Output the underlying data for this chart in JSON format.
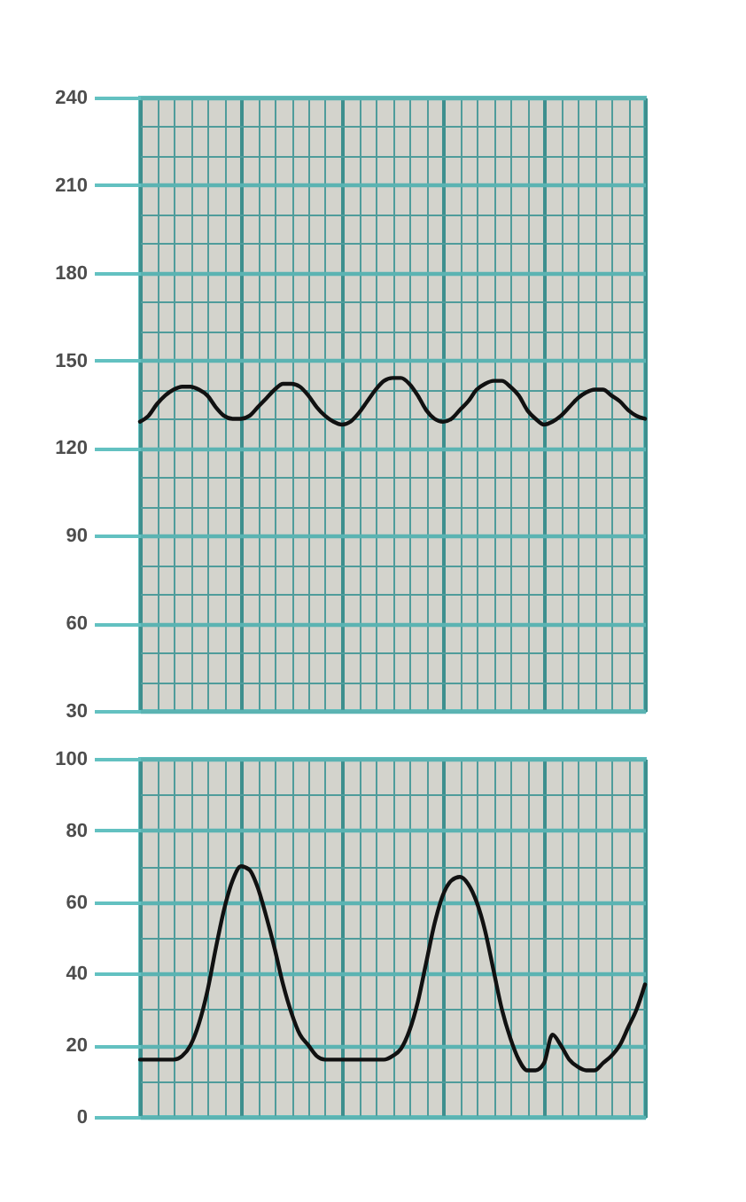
{
  "chart_data": [
    {
      "type": "line",
      "categories": [
        null,
        null,
        null,
        null,
        null,
        null,
        null,
        null,
        null,
        null,
        null,
        null,
        null,
        null,
        null,
        null,
        null,
        null,
        null,
        null,
        null,
        null,
        null,
        null,
        null,
        null,
        null,
        null,
        null,
        null,
        null,
        null,
        null,
        null,
        null,
        null,
        null,
        null,
        null,
        null,
        null,
        null,
        null,
        null,
        null,
        null,
        null,
        null,
        null,
        null,
        null,
        null,
        null,
        null,
        null,
        null,
        null,
        null,
        null,
        null,
        null
      ],
      "series": [
        {
          "color": "#111111",
          "values": [
            129,
            131,
            135,
            138,
            140,
            141,
            141,
            140,
            138,
            134,
            131,
            130,
            130,
            131,
            134,
            137,
            140,
            142,
            142,
            141,
            138,
            134,
            131,
            129,
            128,
            129,
            132,
            136,
            140,
            143,
            144,
            144,
            142,
            138,
            133,
            130,
            129,
            130,
            133,
            136,
            140,
            142,
            143,
            143,
            141,
            138,
            133,
            130,
            128,
            129,
            131,
            134,
            137,
            139,
            140,
            140,
            138,
            136,
            133,
            131,
            130
          ]
        }
      ],
      "ylim": [
        30,
        240
      ],
      "yticks": [
        30,
        {
          "value": 40,
          "label": null
        },
        {
          "value": 50,
          "label": null
        },
        60,
        {
          "value": 70,
          "label": null
        },
        {
          "value": 80,
          "label": null
        },
        90,
        {
          "value": 100,
          "label": null
        },
        {
          "value": 110,
          "label": null
        },
        120,
        {
          "value": 130,
          "label": null
        },
        {
          "value": 140,
          "label": null
        },
        150,
        {
          "value": 160,
          "label": null
        },
        {
          "value": 170,
          "label": null
        },
        180,
        {
          "value": 190,
          "label": null
        },
        {
          "value": 200,
          "label": null
        },
        210,
        {
          "value": 220,
          "label": null
        },
        {
          "value": 230,
          "label": null
        },
        240
      ],
      "grid": true,
      "tick_labels": "y"
    },
    {
      "type": "line",
      "categories": [
        null,
        null,
        null,
        null,
        null,
        null,
        null,
        null,
        null,
        null,
        null,
        null,
        null,
        null,
        null,
        null,
        null,
        null,
        null,
        null,
        null,
        null,
        null,
        null,
        null,
        null,
        null,
        null,
        null,
        null,
        null,
        null,
        null,
        null,
        null,
        null,
        null,
        null,
        null,
        null,
        null,
        null,
        null,
        null,
        null,
        null,
        null,
        null,
        null,
        null,
        null,
        null,
        null,
        null,
        null,
        null,
        null,
        null,
        null,
        null,
        null
      ],
      "series": [
        {
          "color": "#111111",
          "values": [
            16,
            16,
            16,
            16,
            16,
            17,
            20,
            26,
            35,
            47,
            58,
            66,
            70,
            69,
            64,
            56,
            47,
            37,
            29,
            23,
            20,
            17,
            16,
            16,
            16,
            16,
            16,
            16,
            16,
            16,
            17,
            19,
            24,
            32,
            43,
            54,
            62,
            66,
            67,
            65,
            60,
            52,
            41,
            30,
            22,
            16,
            13,
            13,
            15,
            23,
            20,
            16,
            14,
            13,
            13,
            15,
            17,
            20,
            25,
            30,
            37
          ]
        }
      ],
      "ylim": [
        0,
        100
      ],
      "yticks": [
        0,
        {
          "value": 10,
          "label": null
        },
        20,
        {
          "value": 30,
          "label": null
        },
        40,
        {
          "value": 50,
          "label": null
        },
        60,
        {
          "value": 70,
          "label": null
        },
        80,
        {
          "value": 90,
          "label": null
        },
        100
      ],
      "grid": true,
      "tick_labels": "y"
    }
  ]
}
